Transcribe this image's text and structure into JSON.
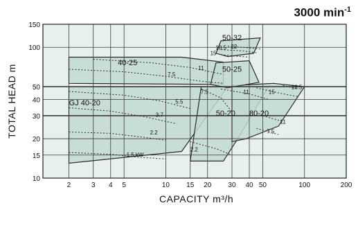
{
  "chart_data": {
    "type": "area",
    "speed": {
      "value": "3000 min",
      "sup": "-1"
    },
    "xlabel": "CAPACITY",
    "xunit": "m³/h",
    "ylabel": "TOTAL HEAD   m",
    "x_scale": "log",
    "y_scale": "log",
    "xlim": [
      1.3,
      200
    ],
    "ylim": [
      10,
      150
    ],
    "x_ticks": [
      2,
      3,
      4,
      5,
      10,
      15,
      20,
      30,
      40,
      50,
      100,
      200
    ],
    "y_ticks": [
      10,
      15,
      20,
      30,
      40,
      50,
      100,
      150
    ],
    "grid": true,
    "colors": {
      "region_fill": "#c2d9cf",
      "region_stroke": "#2a2a2a",
      "plot_bg": "#e8f0ec",
      "grid": "#3a3a3a",
      "dotted": "#2a2a2a"
    },
    "regions": [
      {
        "name": "GJ 40-20",
        "label_at": [
          2.6,
          36
        ],
        "polygon": [
          [
            2,
            50
          ],
          [
            28,
            50
          ],
          [
            13,
            16
          ],
          [
            2,
            13
          ]
        ]
      },
      {
        "name": "40-25",
        "label_at": [
          5.3,
          73
        ],
        "polygon": [
          [
            2,
            84
          ],
          [
            13,
            84
          ],
          [
            26,
            77
          ],
          [
            26,
            52
          ],
          [
            2,
            53
          ]
        ]
      },
      {
        "name": "50-20",
        "label_at": [
          27,
          30
        ],
        "polygon": [
          [
            18,
            50
          ],
          [
            55,
            50
          ],
          [
            33,
            20
          ],
          [
            26,
            13.5
          ],
          [
            15,
            13.5
          ]
        ]
      },
      {
        "name": "80-20",
        "label_at": [
          47,
          30
        ],
        "polygon": [
          [
            30,
            51
          ],
          [
            60,
            53
          ],
          [
            100,
            50
          ],
          [
            65,
            25
          ],
          [
            38,
            20
          ],
          [
            30,
            19
          ]
        ]
      },
      {
        "name": "50-25",
        "label_at": [
          30,
          65
        ],
        "polygon": [
          [
            23,
            76
          ],
          [
            40,
            79
          ],
          [
            47,
            54
          ],
          [
            28,
            49
          ],
          [
            21,
            52
          ]
        ]
      },
      {
        "name": "50-32",
        "label_at": [
          30,
          113
        ],
        "polygon": [
          [
            25,
            112
          ],
          [
            48,
            118
          ],
          [
            43,
            90
          ],
          [
            28,
            85
          ],
          [
            23,
            90
          ]
        ]
      }
    ],
    "power_curves": [
      {
        "kw": "1.5 kW",
        "label_at": [
          6,
          14.6
        ],
        "points": [
          [
            2,
            15.7
          ],
          [
            4,
            15.2
          ],
          [
            6,
            14.5
          ],
          [
            10,
            14.0
          ]
        ]
      },
      {
        "kw": "2.2",
        "label_at": [
          8.2,
          21.5
        ],
        "points": [
          [
            2,
            22.5
          ],
          [
            4,
            22
          ],
          [
            7,
            20.5
          ],
          [
            10,
            19.5
          ]
        ]
      },
      {
        "kw": "3.7",
        "label_at": [
          9,
          29.5
        ],
        "points": [
          [
            2,
            34.5
          ],
          [
            4,
            32.5
          ],
          [
            7,
            29.5
          ],
          [
            12,
            26
          ]
        ]
      },
      {
        "kw": "5.5",
        "label_at": [
          12.5,
          37
        ],
        "points": [
          [
            2,
            46
          ],
          [
            5,
            43
          ],
          [
            9,
            39
          ],
          [
            15,
            34
          ]
        ]
      },
      {
        "kw": "7.5",
        "label_at": [
          11,
          60
        ],
        "points": [
          [
            2,
            68
          ],
          [
            5,
            65
          ],
          [
            10,
            60
          ],
          [
            18,
            55
          ],
          [
            26,
            53
          ]
        ]
      },
      {
        "kw": "11",
        "label_at": [
          18,
          67
        ],
        "points": [
          [
            3,
            81
          ],
          [
            8,
            76
          ],
          [
            15,
            70
          ],
          [
            26,
            62
          ]
        ]
      },
      {
        "kw": "7.5",
        "label_at": [
          19,
          44
        ],
        "points": [
          [
            18,
            48
          ],
          [
            25,
            41
          ],
          [
            30,
            32
          ]
        ]
      },
      {
        "kw": "2.2",
        "label_at": [
          16,
          16
        ],
        "points": [
          [
            15,
            19
          ],
          [
            23,
            16.8
          ],
          [
            30,
            15
          ]
        ]
      },
      {
        "kw": "11",
        "label_at": [
          38,
          44
        ],
        "points": [
          [
            25,
            48
          ],
          [
            40,
            44
          ],
          [
            55,
            40
          ]
        ]
      },
      {
        "kw": "15",
        "label_at": [
          22,
          87
        ],
        "points": [
          [
            25,
            88
          ],
          [
            30,
            86
          ],
          [
            40,
            84
          ]
        ]
      },
      {
        "kw": "18.5",
        "label_at": [
          25,
          96
        ],
        "points": [
          [
            25,
            96
          ],
          [
            35,
            94
          ],
          [
            45,
            91
          ]
        ]
      },
      {
        "kw": "22",
        "label_at": [
          31,
          98
        ],
        "points": [
          [
            28,
            102
          ],
          [
            40,
            99
          ],
          [
            48,
            97
          ]
        ]
      },
      {
        "kw": "15",
        "label_at": [
          58,
          44
        ],
        "points": [
          [
            45,
            49
          ],
          [
            70,
            44
          ],
          [
            90,
            42
          ]
        ]
      },
      {
        "kw": "18.5",
        "label_at": [
          88,
          48
        ],
        "points": [
          [
            70,
            51
          ],
          [
            90,
            48
          ]
        ]
      },
      {
        "kw": "11",
        "label_at": [
          70,
          26
        ],
        "points": [
          [
            50,
            30
          ],
          [
            70,
            27
          ]
        ]
      },
      {
        "kw": "7.5",
        "label_at": [
          57,
          22
        ],
        "points": [
          [
            45,
            24
          ],
          [
            65,
            21.5
          ]
        ]
      }
    ]
  }
}
